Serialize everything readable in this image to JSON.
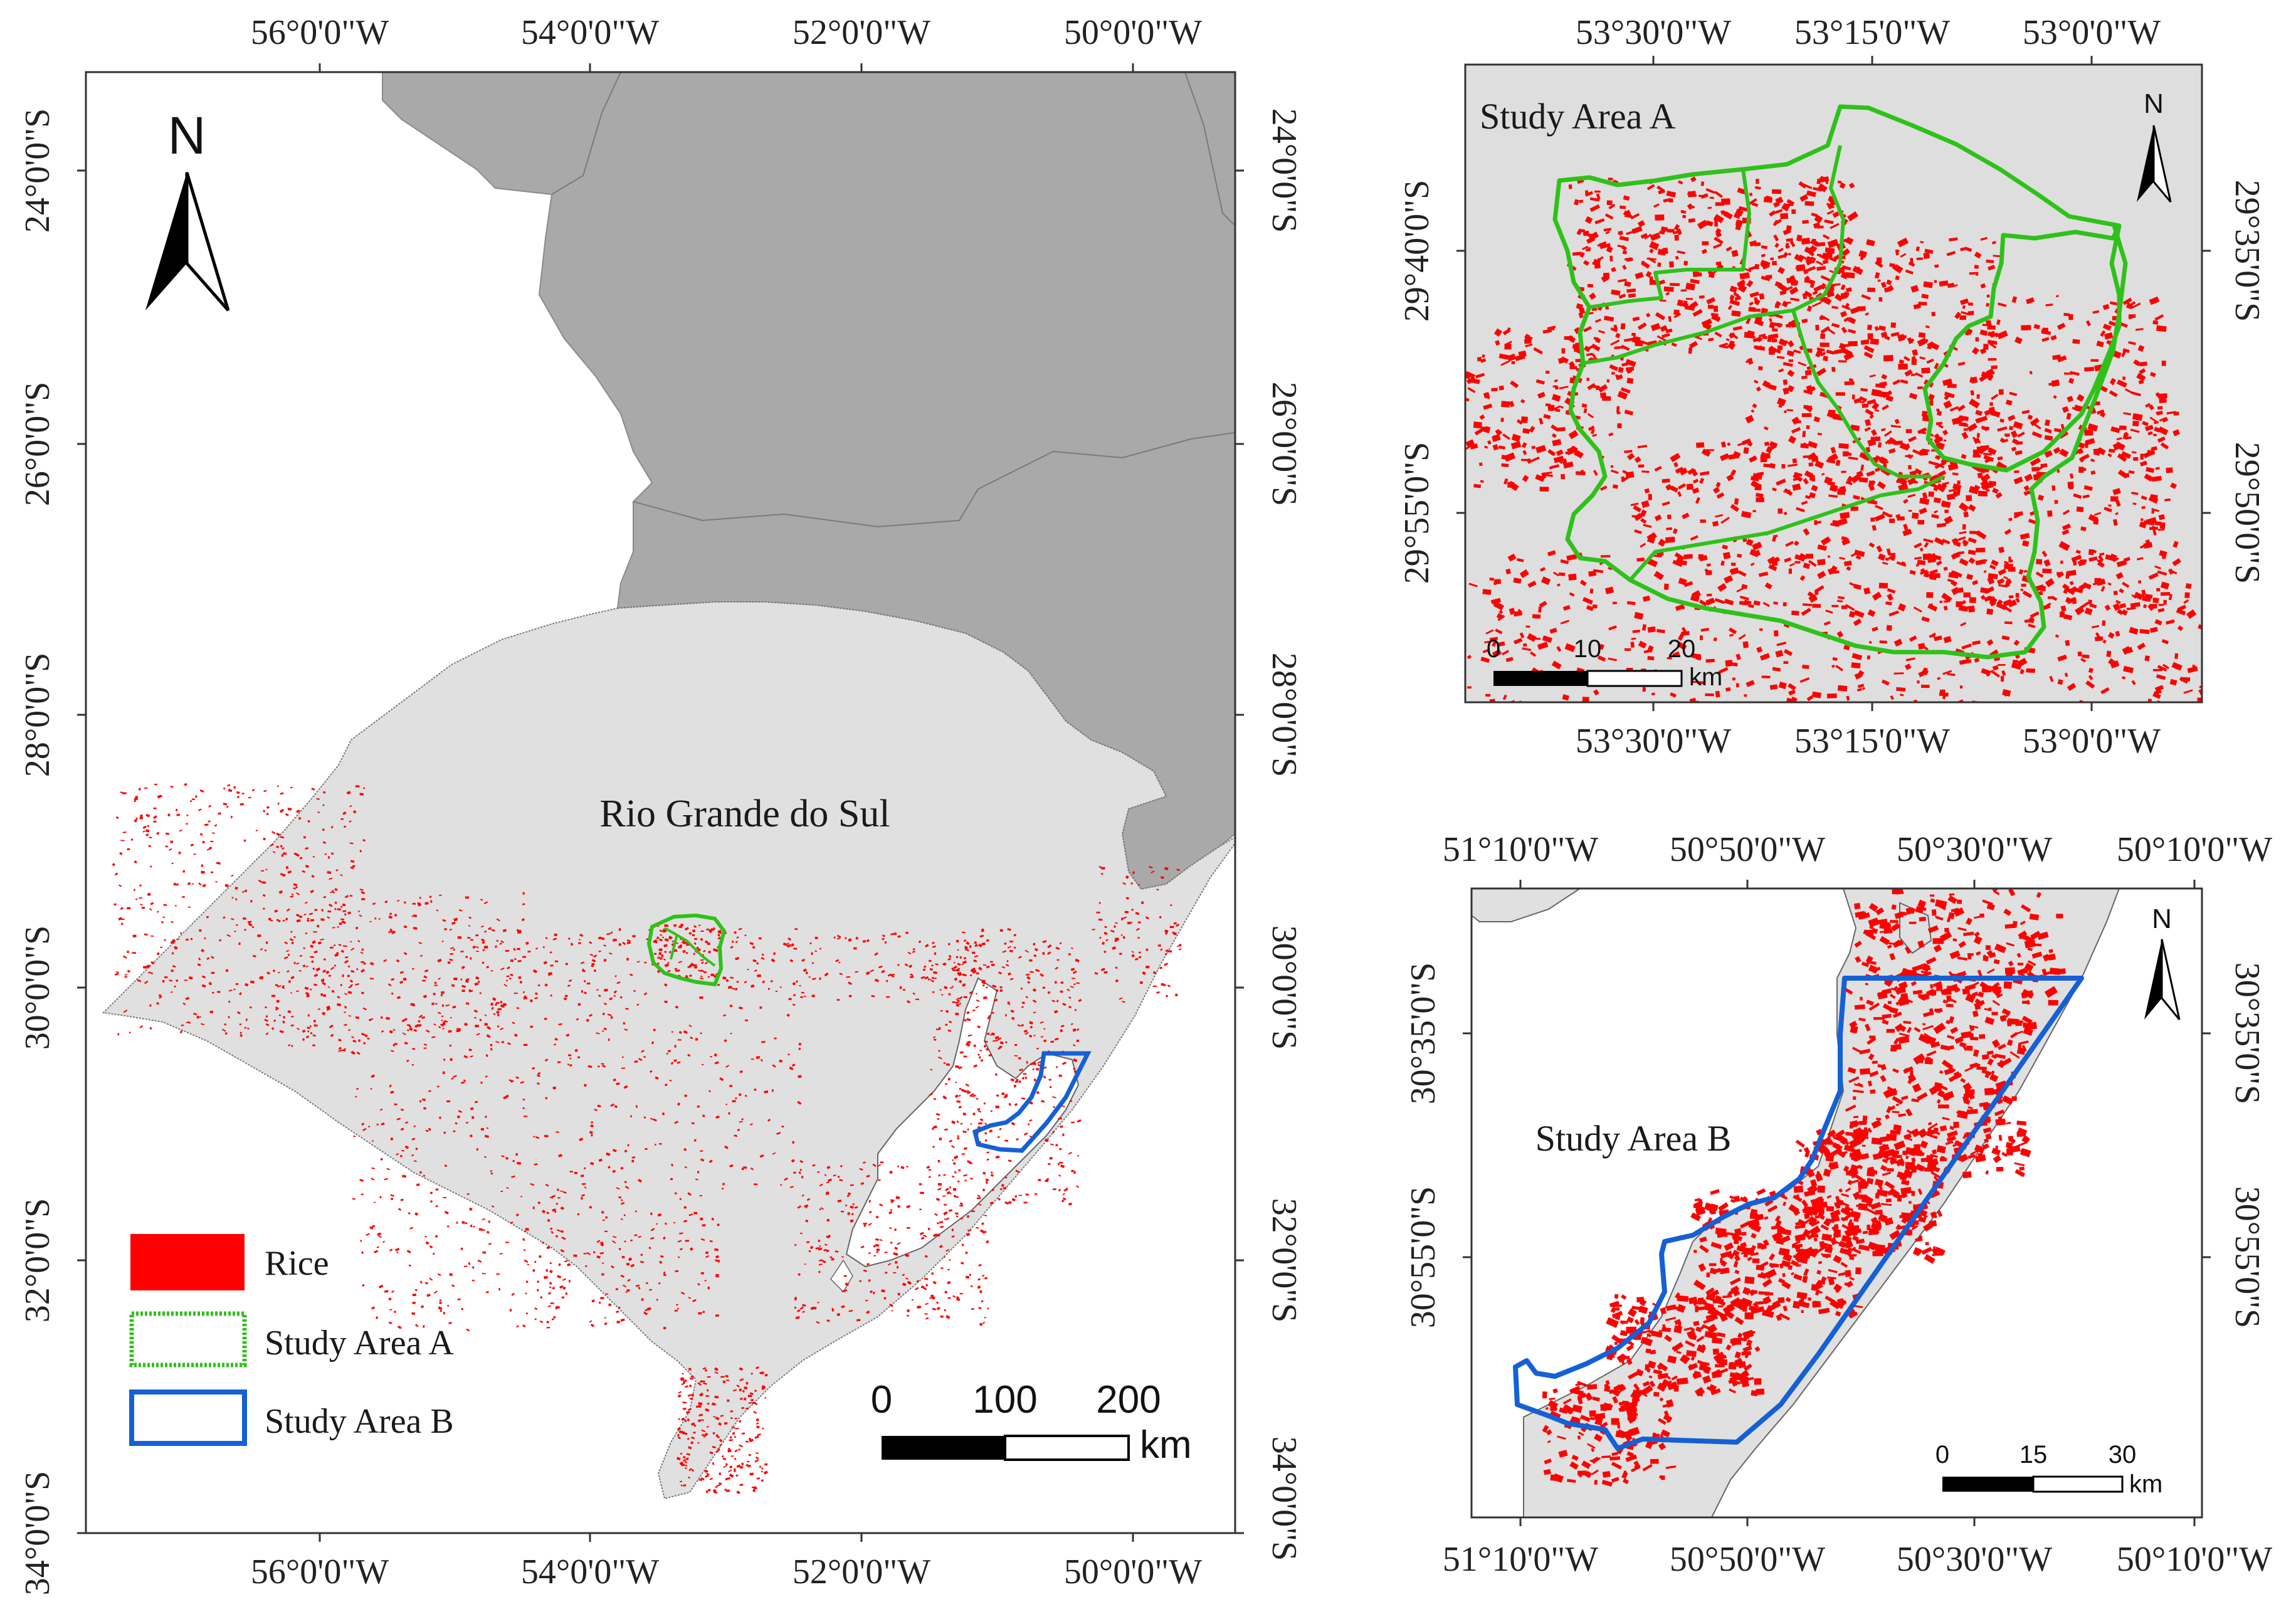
{
  "main_map": {
    "top_lon_labels": [
      "56°0'0\"W",
      "54°0'0\"W",
      "52°0'0\"W",
      "50°0'0\"W"
    ],
    "bottom_lon_labels": [
      "56°0'0\"W",
      "54°0'0\"W",
      "52°0'0\"W",
      "50°0'0\"W"
    ],
    "left_lat_labels": [
      "24°0'0\"S",
      "26°0'0\"S",
      "28°0'0\"S",
      "30°0'0\"S",
      "32°0'0\"S",
      "34°0'0\"S"
    ],
    "right_lat_labels": [
      "24°0'0\"S",
      "26°0'0\"S",
      "28°0'0\"S",
      "30°0'0\"S",
      "32°0'0\"S",
      "34°0'0\"S"
    ],
    "region_label": "Rio Grande do Sul",
    "north_label": "N",
    "scale": {
      "ticks": [
        "0",
        "100",
        "200"
      ],
      "unit": "km"
    },
    "legend": [
      {
        "label": "Rice",
        "color": "#ff0000",
        "kind": "fill"
      },
      {
        "label": "Study Area A",
        "color": "#2fc11a",
        "kind": "outline"
      },
      {
        "label": "Study Area B",
        "color": "#1560d4",
        "kind": "outline"
      }
    ]
  },
  "inset_a": {
    "title": "Study Area A",
    "north_label": "N",
    "top_lon_labels": [
      "53°30'0\"W",
      "53°15'0\"W",
      "53°0'0\"W"
    ],
    "bottom_lon_labels": [
      "53°30'0\"W",
      "53°15'0\"W",
      "53°0'0\"W"
    ],
    "left_lat_labels": [
      "29°40'0\"S",
      "29°55'0\"S"
    ],
    "right_lat_labels": [
      "29°35'0\"S",
      "29°50'0\"S"
    ],
    "scale": {
      "ticks": [
        "0",
        "10",
        "20"
      ],
      "unit": "km"
    }
  },
  "inset_b": {
    "title": "Study Area B",
    "north_label": "N",
    "top_lon_labels": [
      "51°10'0\"W",
      "50°50'0\"W",
      "50°30'0\"W",
      "50°10'0\"W"
    ],
    "bottom_lon_labels": [
      "51°10'0\"W",
      "50°50'0\"W",
      "50°30'0\"W",
      "50°10'0\"W"
    ],
    "left_lat_labels": [
      "30°35'0\"S",
      "30°55'0\"S"
    ],
    "right_lat_labels": [
      "30°35'0\"S",
      "30°55'0\"S"
    ],
    "scale": {
      "ticks": [
        "0",
        "15",
        "30"
      ],
      "unit": "km"
    }
  },
  "colors": {
    "land_rs": "#e0e0e0",
    "neighbor": "#a9a9a9",
    "water": "#ffffff",
    "rice": "#ff0000",
    "area_a": "#2fc11a",
    "area_b": "#1560d4",
    "frame": "#333333"
  }
}
